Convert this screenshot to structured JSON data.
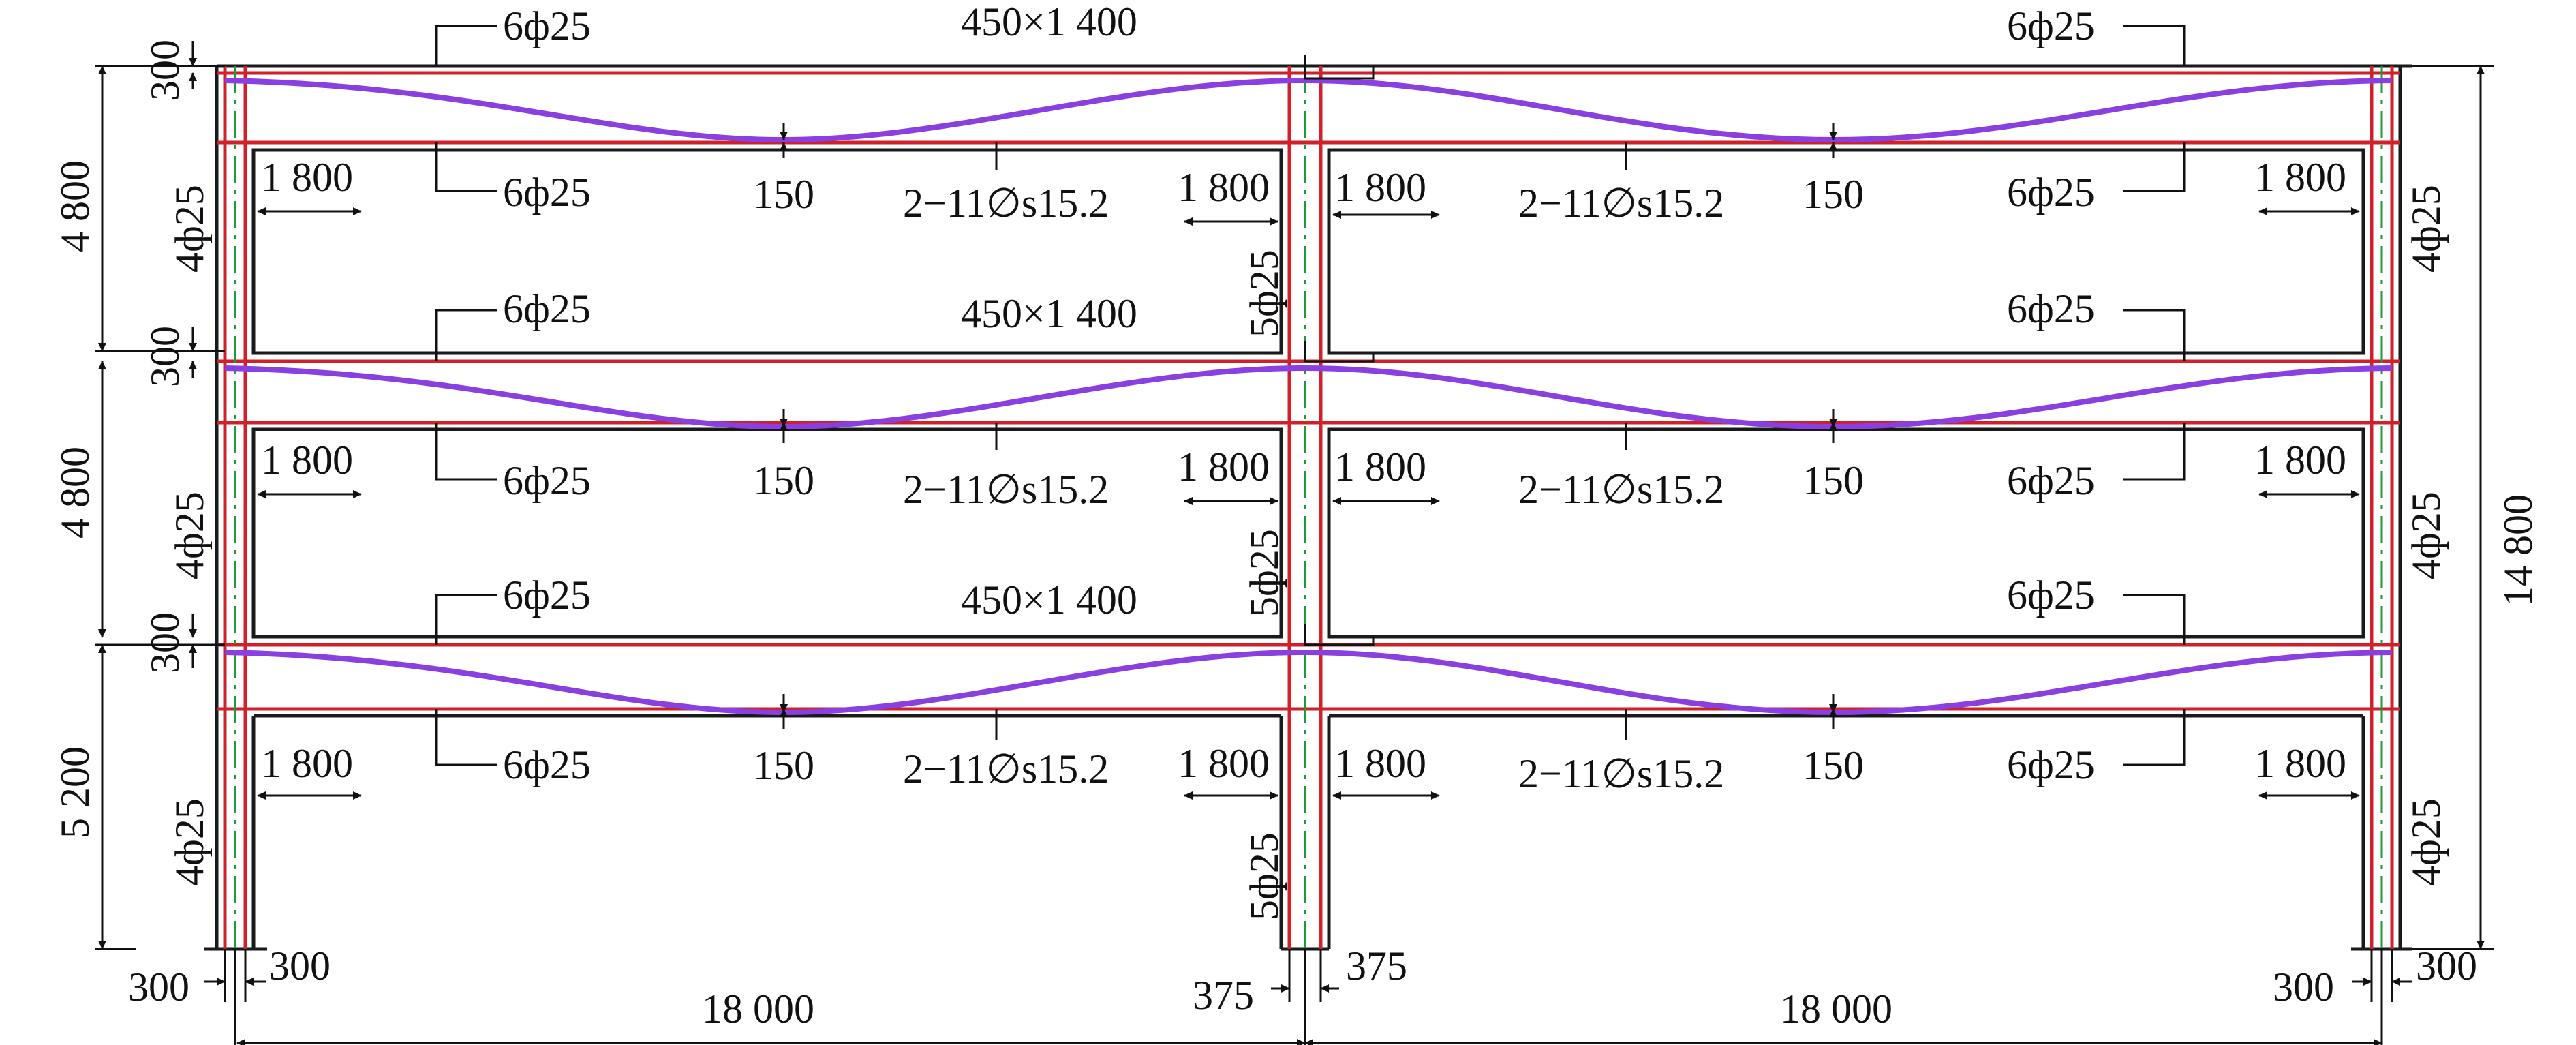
{
  "colors": {
    "concrete_outline": "#1a1a1a",
    "rebar": "#d0202a",
    "column_axis": "#1f9a3a",
    "prestress_tendon": "#8a3fe0"
  },
  "beam_section": "450×1 400",
  "top_bars": "6ф25",
  "bottom_bars": "6ф25",
  "tendon": "2−11∅s15.2",
  "tendon_low_offset": "150",
  "end_zone": "1 800",
  "side_column_bars": "4ф25",
  "mid_column_bars": "5ф25",
  "storeys": [
    "4 800",
    "4 800",
    "5 200"
  ],
  "beam_depth_mark": "300",
  "total_height": "14 800",
  "spans": [
    "18 000",
    "18 000"
  ],
  "side_col_dims": [
    "300",
    "300"
  ],
  "mid_col_dims": [
    "375",
    "375"
  ]
}
